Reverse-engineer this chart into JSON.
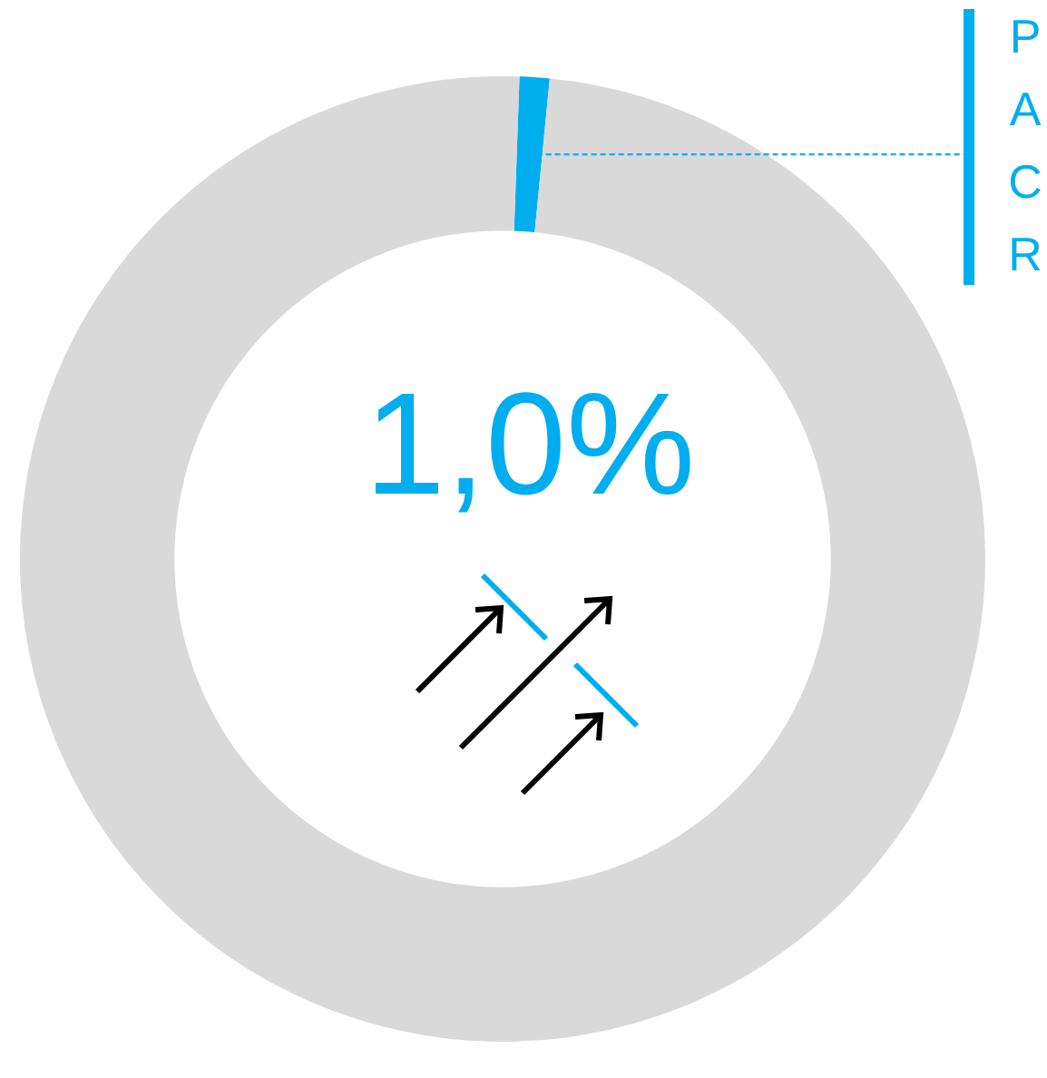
{
  "chart_data": {
    "type": "donut",
    "categories": [
      "PACR",
      null
    ],
    "values": [
      1.0,
      99.0
    ],
    "colors": [
      "#00aeef",
      "#d9d9d9"
    ],
    "annotations": [
      "1,0%"
    ],
    "legend": false
  }
}
